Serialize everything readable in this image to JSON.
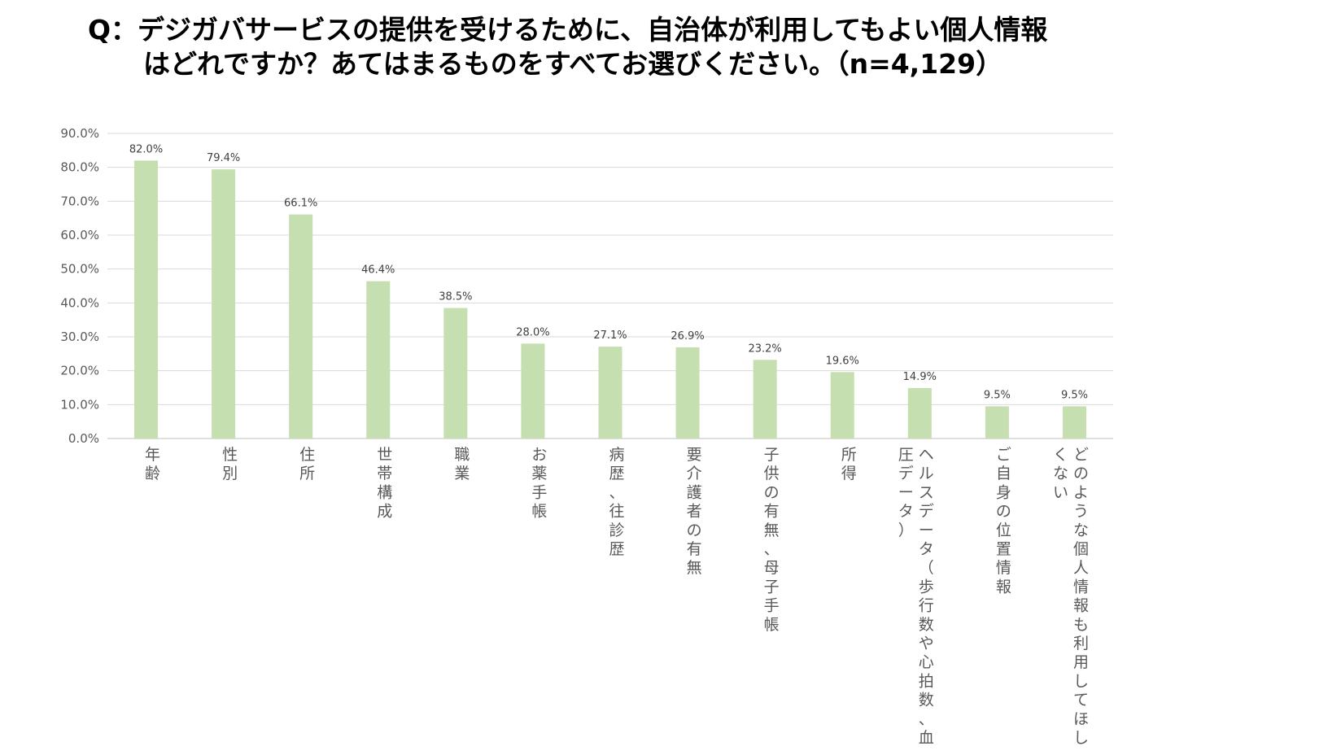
{
  "title": {
    "line1": "Q：デジガバサービスの提供を受けるために、自治体が利用してもよい個人情報",
    "line2": "はどれですか？あてはまるものをすべてお選びください。（n=4,129）"
  },
  "colors": {
    "bar": "#c5dfb0",
    "grid": "#d9d9d9",
    "axis": "#bfbfbf"
  },
  "chart_data": {
    "type": "bar",
    "title": "Q：デジガバサービスの提供を受けるために、自治体が利用してもよい個人情報はどれですか？あてはまるものをすべてお選びください。（n=4,129）",
    "categories": [
      {
        "lines": [
          "年齢"
        ]
      },
      {
        "lines": [
          "性別"
        ]
      },
      {
        "lines": [
          "住所"
        ]
      },
      {
        "lines": [
          "世帯構成"
        ]
      },
      {
        "lines": [
          "職業"
        ]
      },
      {
        "lines": [
          "お薬手帳"
        ]
      },
      {
        "lines": [
          "病歴、往診歴"
        ]
      },
      {
        "lines": [
          "要介護者の有無"
        ]
      },
      {
        "lines": [
          "子供の有無、母子手帳"
        ]
      },
      {
        "lines": [
          "所得"
        ]
      },
      {
        "lines": [
          "ヘルスデータ（歩行数や心拍数、血",
          "圧データ）"
        ]
      },
      {
        "lines": [
          "ご自身の位置情報"
        ]
      },
      {
        "lines": [
          "どのような個人情報も利用してほし",
          "くない"
        ]
      }
    ],
    "values": [
      82.0,
      79.4,
      66.1,
      46.4,
      38.5,
      28.0,
      27.1,
      26.9,
      23.2,
      19.6,
      14.9,
      9.5,
      9.5
    ],
    "data_labels": [
      "82.0%",
      "79.4%",
      "66.1%",
      "46.4%",
      "38.5%",
      "28.0%",
      "27.1%",
      "26.9%",
      "23.2%",
      "19.6%",
      "14.9%",
      "9.5%",
      "9.5%"
    ],
    "y_ticks": [
      "0.0%",
      "10.0%",
      "20.0%",
      "30.0%",
      "40.0%",
      "50.0%",
      "60.0%",
      "70.0%",
      "80.0%",
      "90.0%"
    ],
    "ylim": [
      0,
      90
    ],
    "grid": true,
    "legend": "none",
    "xlabel": "",
    "ylabel": ""
  }
}
